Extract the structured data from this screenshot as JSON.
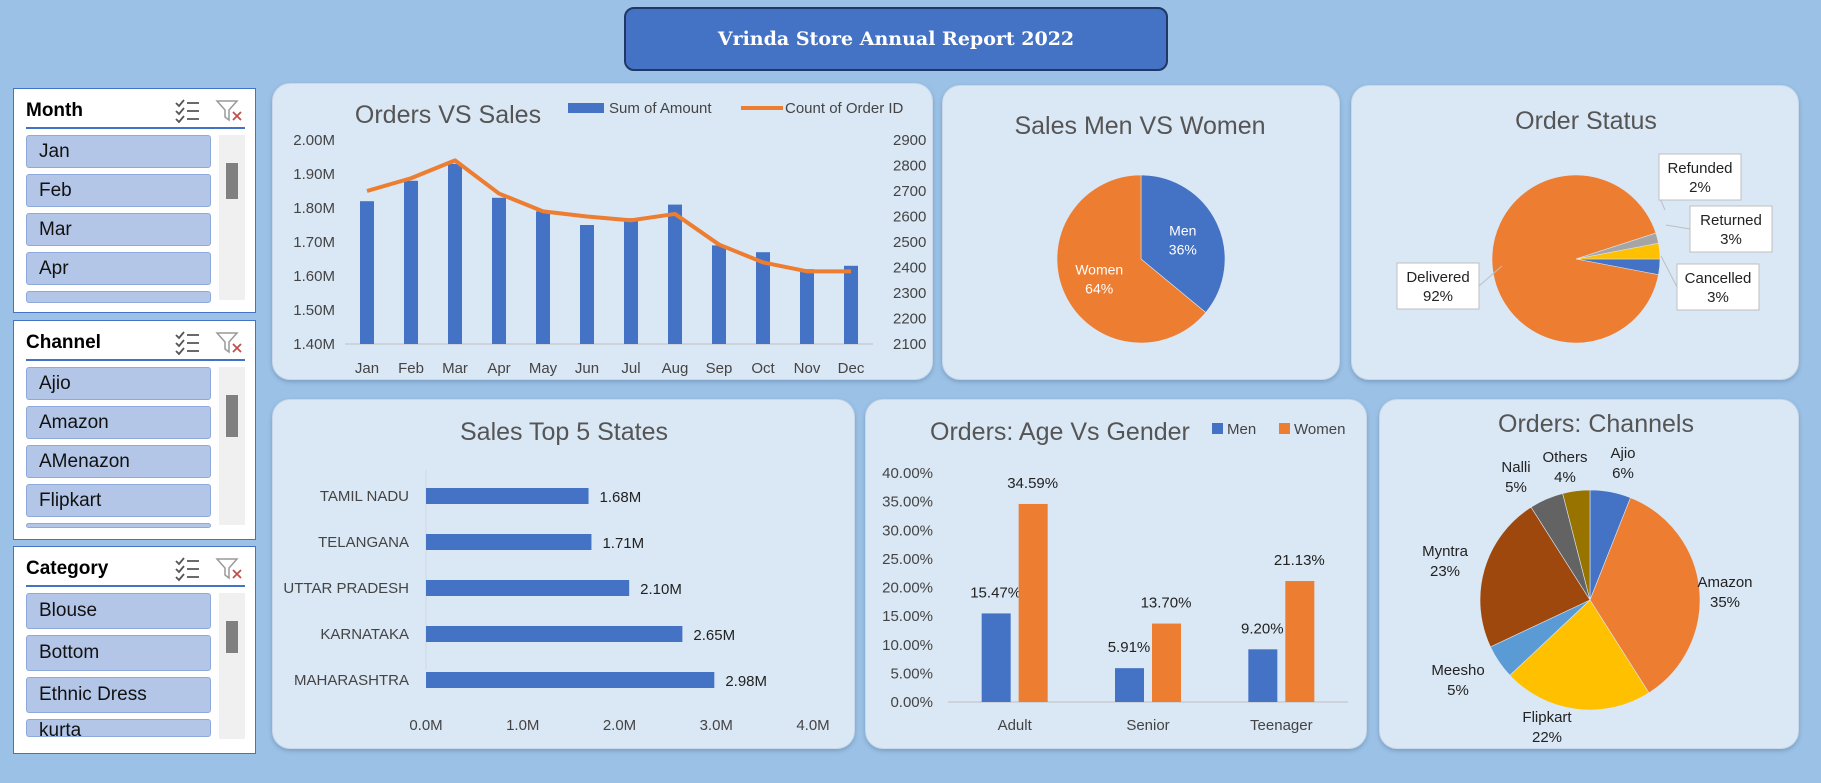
{
  "header": {
    "title": "Vrinda Store Annual Report 2022"
  },
  "slicers": {
    "month": {
      "title": "Month",
      "items": [
        "Jan",
        "Feb",
        "Mar",
        "Apr",
        ""
      ]
    },
    "channel": {
      "title": "Channel",
      "items": [
        "Ajio",
        "Amazon",
        "AMenazon",
        "Flipkart",
        ""
      ]
    },
    "category": {
      "title": "Category",
      "items": [
        "Blouse",
        "Bottom",
        "Ethnic Dress",
        "kurta"
      ]
    }
  },
  "colors": {
    "blue": "#4472c4",
    "orange": "#ed7d31",
    "gray": "#a5a5a5",
    "gold": "#ffc000",
    "lightblue": "#5b9bd5",
    "rust": "#9e480e",
    "darkgray": "#636363",
    "olive": "#997300"
  },
  "chart_data": [
    {
      "type": "bar+line",
      "title": "Orders VS Sales",
      "categories": [
        "Jan",
        "Feb",
        "Mar",
        "Apr",
        "May",
        "Jun",
        "Jul",
        "Aug",
        "Sep",
        "Oct",
        "Nov",
        "Dec"
      ],
      "series": [
        {
          "name": "Sum of Amount",
          "type": "bar",
          "axis": "left",
          "values": [
            1.82,
            1.88,
            1.93,
            1.83,
            1.79,
            1.75,
            1.77,
            1.81,
            1.69,
            1.67,
            1.62,
            1.63
          ]
        },
        {
          "name": "Count of Order ID",
          "type": "line",
          "axis": "right",
          "values": [
            2700,
            2750,
            2820,
            2690,
            2620,
            2600,
            2585,
            2610,
            2490,
            2420,
            2385,
            2385
          ]
        }
      ],
      "y_left": {
        "ticks": [
          "1.40M",
          "1.50M",
          "1.60M",
          "1.70M",
          "1.80M",
          "1.90M",
          "2.00M"
        ],
        "lim": [
          1.4,
          2.0
        ]
      },
      "y_right": {
        "ticks": [
          "2100",
          "2200",
          "2300",
          "2400",
          "2500",
          "2600",
          "2700",
          "2800",
          "2900"
        ],
        "lim": [
          2100,
          2900
        ]
      },
      "legend": "top"
    },
    {
      "type": "pie",
      "title": "Sales Men VS Women",
      "slices": [
        {
          "name": "Men",
          "value": 36,
          "label": "36%"
        },
        {
          "name": "Women",
          "value": 64,
          "label": "64%"
        }
      ]
    },
    {
      "type": "pie",
      "title": "Order Status",
      "slices": [
        {
          "name": "Cancelled",
          "value": 3,
          "label": "3%"
        },
        {
          "name": "Delivered",
          "value": 92,
          "label": "92%"
        },
        {
          "name": "Refunded",
          "value": 2,
          "label": "2%"
        },
        {
          "name": "Returned",
          "value": 3,
          "label": "3%"
        }
      ]
    },
    {
      "type": "bar",
      "orientation": "horizontal",
      "title": "Sales Top 5 States",
      "categories": [
        "TAMIL NADU",
        "TELANGANA",
        "UTTAR PRADESH",
        "KARNATAKA",
        "MAHARASHTRA"
      ],
      "values": [
        1.68,
        1.71,
        2.1,
        2.65,
        2.98
      ],
      "labels": [
        "1.68M",
        "1.71M",
        "2.10M",
        "2.65M",
        "2.98M"
      ],
      "x_ticks": [
        "0.0M",
        "1.0M",
        "2.0M",
        "3.0M",
        "4.0M"
      ],
      "xlim": [
        0,
        4
      ]
    },
    {
      "type": "bar",
      "title": "Orders: Age Vs Gender",
      "categories": [
        "Adult",
        "Senior",
        "Teenager"
      ],
      "series": [
        {
          "name": "Men",
          "values": [
            15.47,
            5.91,
            9.2
          ],
          "labels": [
            "15.47%",
            "5.91%",
            "9.20%"
          ]
        },
        {
          "name": "Women",
          "values": [
            34.59,
            13.7,
            21.13
          ],
          "labels": [
            "34.59%",
            "13.70%",
            "21.13%"
          ]
        }
      ],
      "y_ticks": [
        "0.00%",
        "5.00%",
        "10.00%",
        "15.00%",
        "20.00%",
        "25.00%",
        "30.00%",
        "35.00%",
        "40.00%"
      ],
      "ylim": [
        0,
        40
      ],
      "legend": "top-right"
    },
    {
      "type": "pie",
      "title": "Orders: Channels",
      "slices": [
        {
          "name": "Ajio",
          "value": 6,
          "label": "6%"
        },
        {
          "name": "Amazon",
          "value": 35,
          "label": "35%"
        },
        {
          "name": "Flipkart",
          "value": 22,
          "label": "22%"
        },
        {
          "name": "Meesho",
          "value": 5,
          "label": "5%"
        },
        {
          "name": "Myntra",
          "value": 23,
          "label": "23%"
        },
        {
          "name": "Nalli",
          "value": 5,
          "label": "5%"
        },
        {
          "name": "Others",
          "value": 4,
          "label": "4%"
        }
      ]
    }
  ]
}
